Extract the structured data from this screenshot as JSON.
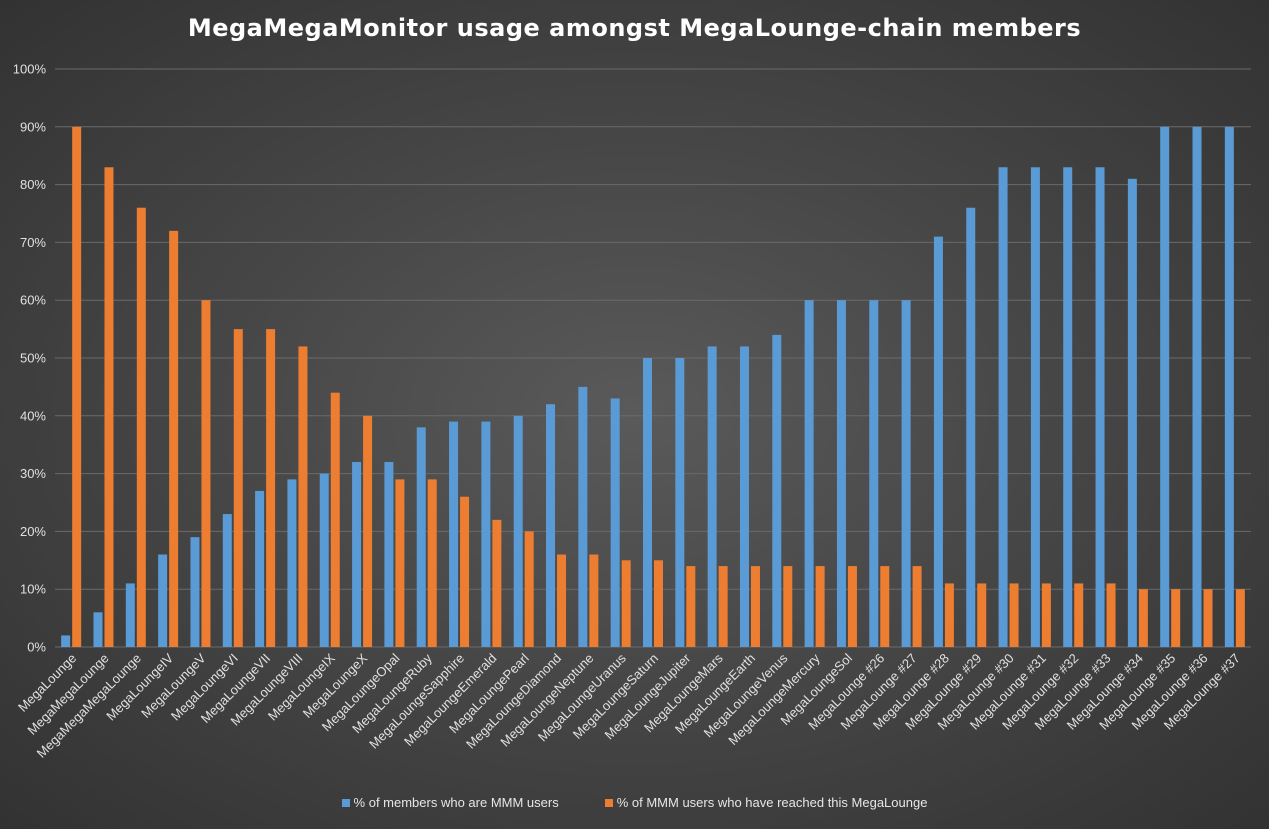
{
  "chart_data": {
    "type": "bar",
    "title": "MegaMegaMonitor usage amongst MegaLounge-chain members",
    "xlabel": "",
    "ylabel": "",
    "ylim": [
      0,
      100
    ],
    "y_ticks": [
      "0%",
      "10%",
      "20%",
      "30%",
      "40%",
      "50%",
      "60%",
      "70%",
      "80%",
      "90%",
      "100%"
    ],
    "y_tick_values": [
      0,
      10,
      20,
      30,
      40,
      50,
      60,
      70,
      80,
      90,
      100
    ],
    "grid": true,
    "legend_position": "bottom",
    "categories": [
      "MegaLounge",
      "MegaMegaLounge",
      "MegaMegaMegaLounge",
      "MegaLoungeIV",
      "MegaLoungeV",
      "MegaLoungeVI",
      "MegaLoungeVII",
      "MegaLoungeVIII",
      "MegaLoungeIX",
      "MegaLoungeX",
      "MegaLoungeOpal",
      "MegaLoungeRuby",
      "MegaLoungeSapphire",
      "MegaLoungeEmerald",
      "MegaLoungePearl",
      "MegaLoungeDiamond",
      "MegaLoungeNeptune",
      "MegaLoungeUranus",
      "MegaLoungeSaturn",
      "MegaLoungeJupiter",
      "MegaLoungeMars",
      "MegaLoungeEarth",
      "MegaLoungeVenus",
      "MegaLoungeMercury",
      "MegaLoungeSol",
      "MegaLounge #26",
      "MegaLounge #27",
      "MegaLounge #28",
      "MegaLounge #29",
      "MegaLounge #30",
      "MegaLounge #31",
      "MegaLounge #32",
      "MegaLounge #33",
      "MegaLounge #34",
      "MegaLounge #35",
      "MegaLounge #36",
      "MegaLounge #37"
    ],
    "series": [
      {
        "name": "% of members who are MMM users",
        "color": "#5b9bd5",
        "values": [
          2,
          6,
          11,
          16,
          19,
          23,
          27,
          29,
          30,
          32,
          32,
          38,
          39,
          39,
          40,
          42,
          45,
          43,
          50,
          50,
          52,
          52,
          54,
          60,
          60,
          60,
          60,
          71,
          76,
          83,
          83,
          83,
          83,
          81,
          90,
          90,
          90
        ]
      },
      {
        "name": "% of MMM users who have reached this MegaLounge",
        "color": "#ed7d31",
        "values": [
          90,
          83,
          76,
          72,
          60,
          55,
          55,
          52,
          44,
          40,
          29,
          29,
          26,
          22,
          20,
          16,
          16,
          15,
          15,
          14,
          14,
          14,
          14,
          14,
          14,
          14,
          14,
          11,
          11,
          11,
          11,
          11,
          11,
          10,
          10,
          10,
          10
        ]
      }
    ]
  }
}
